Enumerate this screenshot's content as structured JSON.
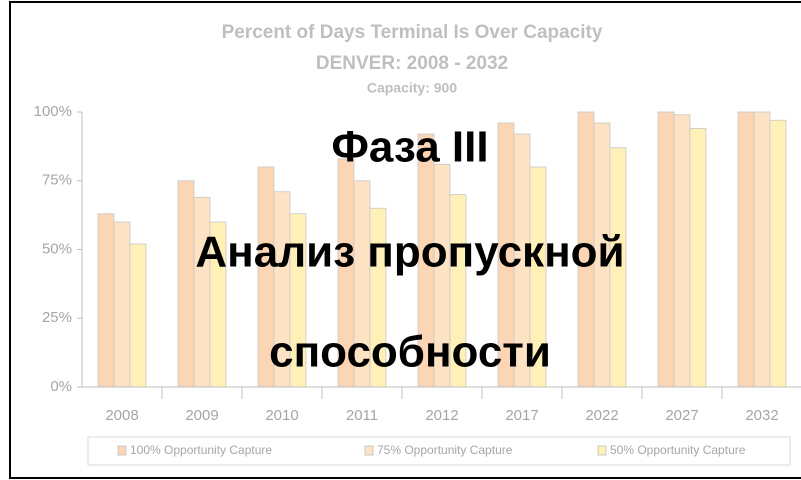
{
  "chart_data": {
    "type": "bar",
    "title": "Percent of Days Terminal Is Over Capacity",
    "subtitle": "DENVER:  2008 - 2032",
    "note": "Capacity: 900",
    "overlay": [
      "Фаза III",
      "Анализ пропускной",
      "способности"
    ],
    "categories": [
      "2008",
      "2009",
      "2010",
      "2011",
      "2012",
      "2017",
      "2022",
      "2027",
      "2032"
    ],
    "series": [
      {
        "name": "100% Opportunity Capture",
        "color": "#fcd5b5",
        "values": [
          63,
          75,
          80,
          83,
          92,
          96,
          100,
          100,
          100
        ]
      },
      {
        "name": "75% Opportunity Capture",
        "color": "#fde2c4",
        "values": [
          60,
          69,
          71,
          75,
          81,
          92,
          96,
          99,
          100
        ]
      },
      {
        "name": "50% Opportunity Capture",
        "color": "#fff0b8",
        "values": [
          52,
          60,
          63,
          65,
          70,
          80,
          87,
          94,
          97
        ]
      }
    ],
    "ylim": [
      0,
      100
    ],
    "yticks": [
      {
        "value": 0,
        "label": "0%"
      },
      {
        "value": 25,
        "label": "25%"
      },
      {
        "value": 50,
        "label": "50%"
      },
      {
        "value": 75,
        "label": "75%"
      },
      {
        "value": 100,
        "label": "100%"
      }
    ],
    "grid": false
  }
}
